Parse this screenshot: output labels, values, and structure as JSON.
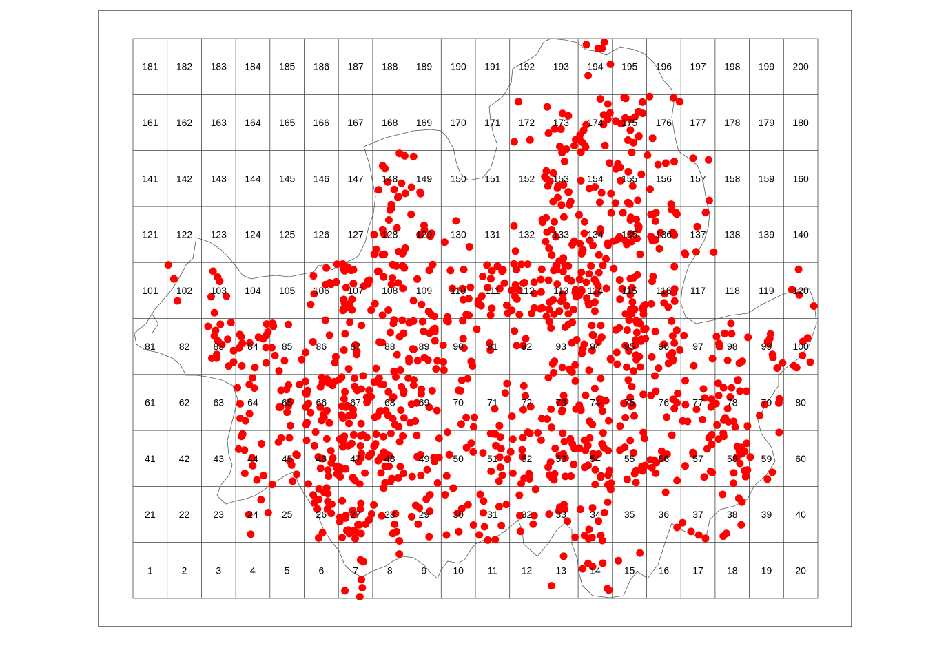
{
  "map": {
    "grid": {
      "columns": 20,
      "rows": 10,
      "numbering": "row-major from bottom-left"
    },
    "colors": {
      "points": "#ff0000",
      "grid": "#444444",
      "outline": "#555555",
      "labels": "#000000"
    },
    "cell_labels": [
      "1",
      "2",
      "3",
      "4",
      "5",
      "6",
      "7",
      "8",
      "9",
      "10",
      "11",
      "12",
      "13",
      "14",
      "15",
      "16",
      "17",
      "18",
      "19",
      "20",
      "21",
      "22",
      "23",
      "24",
      "25",
      "26",
      "27",
      "28",
      "29",
      "30",
      "31",
      "32",
      "33",
      "34",
      "35",
      "36",
      "37",
      "38",
      "39",
      "40",
      "41",
      "42",
      "43",
      "44",
      "45",
      "46",
      "47",
      "48",
      "49",
      "50",
      "51",
      "52",
      "53",
      "54",
      "55",
      "56",
      "57",
      "58",
      "59",
      "60",
      "61",
      "62",
      "63",
      "64",
      "65",
      "66",
      "67",
      "68",
      "69",
      "70",
      "71",
      "72",
      "73",
      "74",
      "75",
      "76",
      "77",
      "78",
      "79",
      "80",
      "81",
      "82",
      "83",
      "84",
      "85",
      "86",
      "87",
      "88",
      "89",
      "90",
      "91",
      "92",
      "93",
      "94",
      "95",
      "96",
      "97",
      "98",
      "99",
      "100",
      "101",
      "102",
      "103",
      "104",
      "105",
      "106",
      "107",
      "108",
      "109",
      "110",
      "111",
      "112",
      "113",
      "114",
      "115",
      "116",
      "117",
      "118",
      "119",
      "120",
      "121",
      "122",
      "123",
      "124",
      "125",
      "126",
      "127",
      "128",
      "129",
      "130",
      "131",
      "132",
      "133",
      "134",
      "135",
      "136",
      "137",
      "138",
      "139",
      "140",
      "141",
      "142",
      "143",
      "144",
      "145",
      "146",
      "147",
      "148",
      "149",
      "150",
      "151",
      "152",
      "153",
      "154",
      "155",
      "156",
      "157",
      "158",
      "159",
      "160",
      "161",
      "162",
      "163",
      "164",
      "165",
      "166",
      "167",
      "168",
      "169",
      "170",
      "171",
      "172",
      "173",
      "174",
      "175",
      "176",
      "177",
      "178",
      "179",
      "180",
      "181",
      "182",
      "183",
      "184",
      "185",
      "186",
      "187",
      "188",
      "189",
      "190",
      "191",
      "192",
      "193",
      "194",
      "195",
      "196",
      "197",
      "198",
      "199",
      "200"
    ],
    "point_density_by_cell": {
      "194": 6,
      "174": 14,
      "175": 16,
      "176": 4,
      "173": 10,
      "172": 3,
      "157": 3,
      "148": 12,
      "149": 4,
      "153": 18,
      "154": 8,
      "155": 12,
      "156": 6,
      "128": 16,
      "129": 6,
      "130": 3,
      "132": 4,
      "133": 14,
      "134": 16,
      "135": 16,
      "136": 14,
      "137": 6,
      "102": 3,
      "103": 6,
      "106": 10,
      "107": 22,
      "108": 14,
      "109": 8,
      "110": 10,
      "111": 18,
      "112": 22,
      "113": 26,
      "114": 20,
      "115": 18,
      "116": 10,
      "120": 4,
      "83": 14,
      "84": 14,
      "85": 8,
      "86": 6,
      "87": 8,
      "88": 12,
      "89": 18,
      "90": 10,
      "91": 3,
      "92": 4,
      "93": 14,
      "94": 14,
      "95": 26,
      "96": 14,
      "97": 3,
      "98": 10,
      "99": 8,
      "100": 6,
      "64": 8,
      "65": 10,
      "66": 22,
      "67": 24,
      "68": 22,
      "69": 12,
      "70": 8,
      "71": 4,
      "72": 6,
      "73": 12,
      "74": 14,
      "75": 10,
      "76": 8,
      "77": 10,
      "78": 18,
      "79": 4,
      "44": 10,
      "45": 10,
      "46": 16,
      "47": 26,
      "48": 22,
      "49": 12,
      "50": 6,
      "51": 12,
      "52": 14,
      "53": 18,
      "54": 22,
      "55": 14,
      "56": 10,
      "57": 10,
      "58": 16,
      "59": 4,
      "24": 4,
      "26": 14,
      "27": 22,
      "28": 8,
      "29": 8,
      "30": 8,
      "31": 10,
      "32": 6,
      "33": 8,
      "34": 12,
      "36": 2,
      "37": 4,
      "38": 6,
      "7": 6,
      "8": 1,
      "13": 2,
      "14": 6,
      "15": 2
    }
  }
}
